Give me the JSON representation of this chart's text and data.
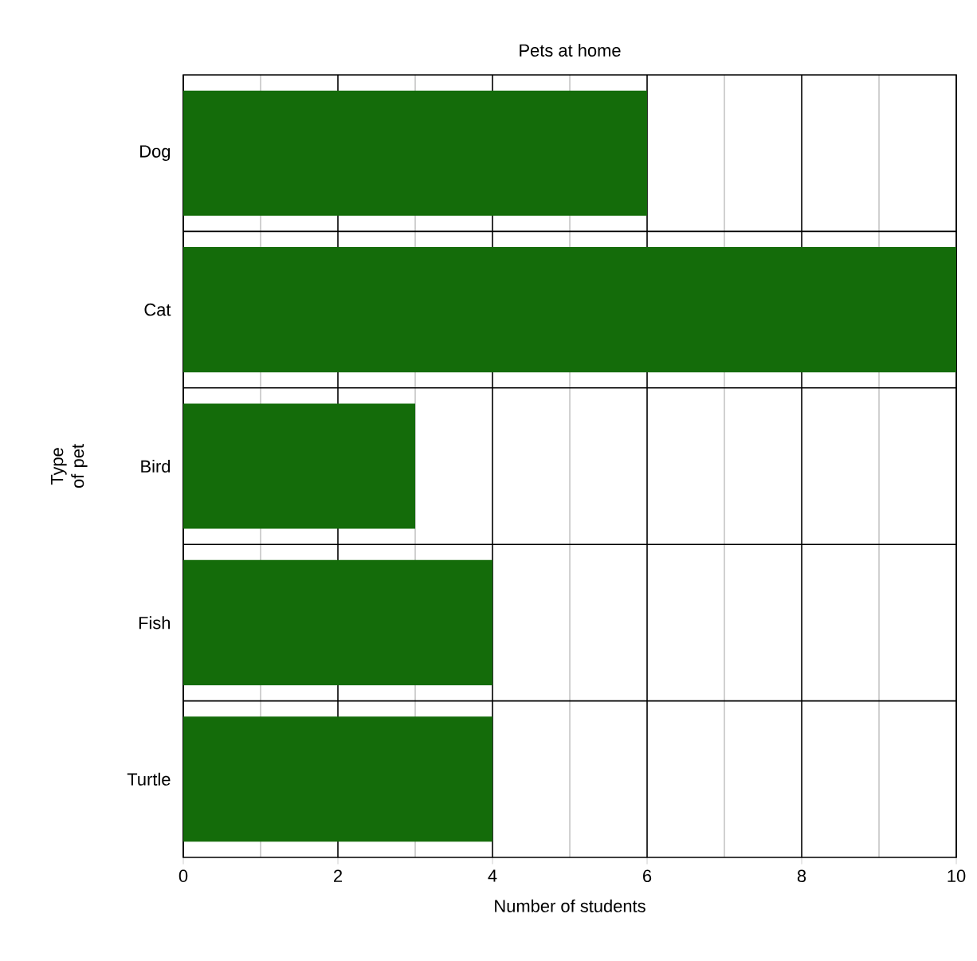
{
  "chart_data": {
    "type": "bar",
    "orientation": "horizontal",
    "title": "Pets at home",
    "xlabel": "Number of students",
    "ylabel": "Type of pet",
    "categories": [
      "Dog",
      "Cat",
      "Bird",
      "Fish",
      "Turtle"
    ],
    "values": [
      6,
      10,
      3,
      4,
      4
    ],
    "color": "#146c0a",
    "xlim": [
      0,
      10
    ],
    "xticks": [
      0,
      {
        "value": 1,
        "label": null
      },
      2,
      {
        "value": 3,
        "label": null
      },
      4,
      {
        "value": 5,
        "label": null
      },
      6,
      {
        "value": 7,
        "label": null
      },
      8,
      {
        "value": 9,
        "label": null
      },
      10
    ],
    "grid": true
  }
}
